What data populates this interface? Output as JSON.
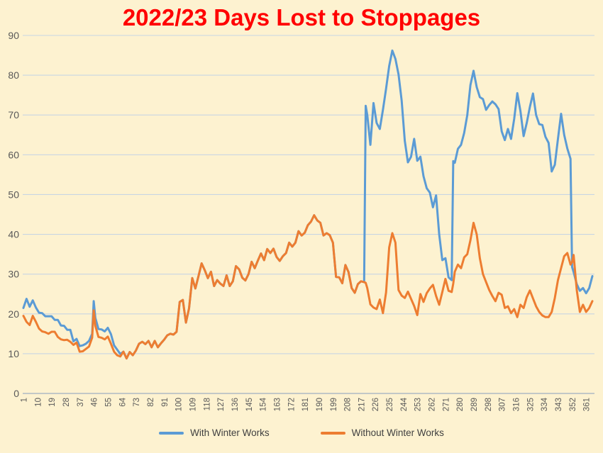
{
  "page": {
    "background": "#FDF2D0"
  },
  "title": {
    "text": "2022/23 Days Lost to Stoppages",
    "color": "#FF0000"
  },
  "chart_data": {
    "type": "line",
    "title": "2022/23 Days Lost to Stoppages",
    "xlabel": "",
    "ylabel": "",
    "xlim": [
      1,
      365
    ],
    "ylim": [
      0,
      90
    ],
    "grid": true,
    "legend_position": "bottom",
    "gridline_color": "#C8D5E3",
    "axis_line_color": "#AFB9C4",
    "tick_label_color": "#595959",
    "xticks": [
      1,
      10,
      19,
      28,
      37,
      46,
      55,
      64,
      73,
      82,
      91,
      100,
      109,
      118,
      127,
      136,
      145,
      154,
      163,
      172,
      181,
      190,
      199,
      208,
      217,
      226,
      235,
      244,
      253,
      262,
      271,
      280,
      289,
      298,
      307,
      316,
      325,
      334,
      343,
      352,
      361
    ],
    "yticks": [
      0,
      10,
      20,
      30,
      40,
      50,
      60,
      70,
      80,
      90
    ],
    "x": [
      1,
      3,
      5,
      7,
      9,
      11,
      13,
      15,
      17,
      19,
      21,
      23,
      25,
      27,
      29,
      31,
      33,
      35,
      37,
      39,
      41,
      43,
      45,
      46,
      47,
      49,
      51,
      53,
      55,
      57,
      59,
      61,
      63,
      65,
      67,
      69,
      71,
      73,
      75,
      77,
      79,
      81,
      83,
      85,
      87,
      89,
      91,
      93,
      95,
      97,
      99,
      101,
      103,
      105,
      107,
      109,
      111,
      113,
      115,
      117,
      119,
      121,
      123,
      125,
      127,
      129,
      131,
      133,
      135,
      137,
      139,
      141,
      143,
      145,
      147,
      149,
      151,
      153,
      155,
      157,
      159,
      161,
      163,
      165,
      167,
      169,
      171,
      173,
      175,
      177,
      179,
      181,
      183,
      185,
      187,
      189,
      191,
      193,
      195,
      197,
      199,
      201,
      203,
      205,
      207,
      209,
      211,
      213,
      215,
      217,
      219,
      220,
      221,
      223,
      225,
      227,
      229,
      231,
      233,
      235,
      237,
      239,
      241,
      243,
      245,
      247,
      249,
      251,
      253,
      255,
      257,
      259,
      261,
      263,
      265,
      267,
      269,
      271,
      273,
      275,
      276,
      277,
      279,
      281,
      283,
      285,
      287,
      289,
      291,
      293,
      295,
      297,
      299,
      301,
      303,
      305,
      307,
      309,
      311,
      313,
      315,
      317,
      319,
      321,
      323,
      325,
      327,
      329,
      331,
      333,
      335,
      337,
      339,
      341,
      343,
      345,
      347,
      349,
      351,
      352,
      353,
      355,
      357,
      359,
      361,
      363,
      365
    ],
    "series": [
      {
        "name": "With Winter Works",
        "color": "#5B9BD5",
        "values": [
          21.5,
          23.8,
          21.8,
          23.4,
          21.6,
          20.3,
          20.2,
          19.4,
          19.4,
          19.4,
          18.5,
          18.5,
          17.1,
          17,
          16,
          16,
          13.1,
          13.7,
          11.9,
          12.1,
          12.5,
          13.2,
          15,
          23.2,
          19,
          16.2,
          16.1,
          15.6,
          16.5,
          14.9,
          12.1,
          11,
          9.9,
          10.5,
          8.8,
          10.4,
          9.6,
          10.8,
          12.5,
          13,
          12.4,
          13.2,
          11.6,
          13.2,
          11.6,
          12.6,
          13.5,
          14.6,
          15,
          14.8,
          15.5,
          23,
          23.5,
          17.8,
          21.4,
          29,
          26.4,
          29.5,
          32.7,
          31,
          29,
          30.6,
          27,
          28.5,
          27.6,
          27,
          29.7,
          27,
          28.2,
          32,
          31.2,
          29.1,
          28.4,
          30,
          33.1,
          31.5,
          33.4,
          35.2,
          33.5,
          36.3,
          35.3,
          36.4,
          34.3,
          33.3,
          34.5,
          35.3,
          37.9,
          36.9,
          37.9,
          40.8,
          39.7,
          40.4,
          42.3,
          43.2,
          44.8,
          43.5,
          42.9,
          39.7,
          40.3,
          39.8,
          37.9,
          29.3,
          29.2,
          27.7,
          32.3,
          30.5,
          26.5,
          25.3,
          27.5,
          28.2,
          28,
          72.3,
          70,
          62.5,
          73,
          68,
          66.5,
          71.3,
          76.6,
          82.3,
          86.2,
          84.1,
          80.2,
          73.6,
          63.5,
          58.1,
          59.5,
          64,
          58.5,
          59.5,
          54.6,
          51.6,
          50.5,
          46.8,
          49.8,
          40,
          33.5,
          34,
          29.2,
          28.5,
          58.4,
          58,
          61.5,
          62.5,
          65.5,
          70,
          77.5,
          81.1,
          77,
          74.5,
          74,
          71.3,
          72.5,
          73.4,
          72.7,
          71.5,
          65.9,
          63.7,
          66.5,
          64,
          69,
          75.5,
          71,
          64.7,
          68,
          72,
          75.4,
          70,
          67.7,
          67.5,
          64.5,
          63,
          55.8,
          57.5,
          64,
          70.3,
          65,
          61.6,
          59,
          31.8,
          30.5,
          27.5,
          25.8,
          26.5,
          25.2,
          26.5,
          29.5
        ]
      },
      {
        "name": "Without Winter Works",
        "color": "#ED7D31",
        "values": [
          19.5,
          18,
          17.2,
          19.5,
          18,
          16.3,
          15.6,
          15.4,
          15,
          15.5,
          15.5,
          14.2,
          13.6,
          13.4,
          13.5,
          13,
          12.2,
          12.8,
          10.5,
          10.6,
          11.2,
          11.8,
          14,
          20.9,
          17,
          14.2,
          14,
          13.6,
          14.3,
          12.5,
          10.5,
          9.6,
          9.3,
          10.5,
          8.8,
          10.4,
          9.6,
          10.8,
          12.5,
          13,
          12.4,
          13.2,
          11.6,
          13.2,
          11.6,
          12.6,
          13.5,
          14.6,
          15,
          14.8,
          15.5,
          23,
          23.5,
          17.8,
          21.4,
          29,
          26.4,
          29.5,
          32.7,
          31,
          29,
          30.6,
          27,
          28.5,
          27.6,
          27,
          29.7,
          27,
          28.2,
          32,
          31.2,
          29.1,
          28.4,
          30,
          33.1,
          31.5,
          33.4,
          35.2,
          33.5,
          36.3,
          35.3,
          36.4,
          34.3,
          33.3,
          34.5,
          35.3,
          37.9,
          36.9,
          37.9,
          40.8,
          39.7,
          40.4,
          42.3,
          43.2,
          44.8,
          43.5,
          42.9,
          39.7,
          40.3,
          39.8,
          37.9,
          29.3,
          29.2,
          27.7,
          32.3,
          30.5,
          26.5,
          25.3,
          27.5,
          28.2,
          28,
          27.8,
          26.5,
          22.4,
          21.6,
          21.2,
          23.6,
          20.2,
          25.4,
          36.7,
          40.3,
          37.9,
          26,
          24.6,
          24,
          25.6,
          23.8,
          22,
          19.7,
          25,
          23,
          25.2,
          26.4,
          27.3,
          24.5,
          22.3,
          25.5,
          28.8,
          25.8,
          25.5,
          27.6,
          30.6,
          32.4,
          31.5,
          34.2,
          35,
          38.5,
          42.9,
          40,
          34,
          30,
          28,
          26,
          24.5,
          23.2,
          25.3,
          24.8,
          21.5,
          21.9,
          20.2,
          21.2,
          19.2,
          22.3,
          21.5,
          24.2,
          25.9,
          23.9,
          21.9,
          20.5,
          19.6,
          19.2,
          19.2,
          20.5,
          24,
          28.5,
          31.5,
          34.5,
          35.3,
          32.4,
          33,
          34.8,
          26,
          20.5,
          22.3,
          20.5,
          21.5,
          23.2
        ]
      }
    ]
  }
}
